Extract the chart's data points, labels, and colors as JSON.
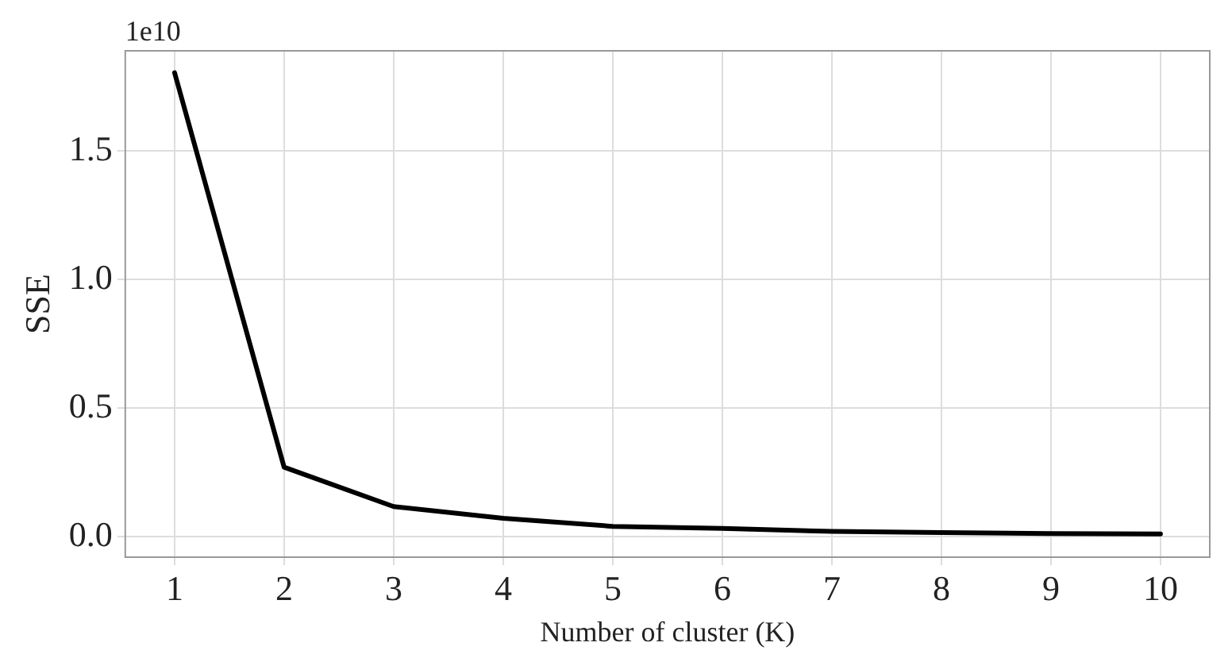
{
  "chart_data": {
    "type": "line",
    "xlabel": "Number of cluster (K)",
    "ylabel": "SSE",
    "annotations": [
      "1e10"
    ],
    "x": [
      1,
      2,
      3,
      4,
      5,
      6,
      7,
      8,
      9,
      10
    ],
    "series": [
      {
        "color": "#000000",
        "values": [
          1.805,
          0.27,
          0.117,
          0.071,
          0.04,
          0.032,
          0.02,
          0.016,
          0.012,
          0.01
        ]
      }
    ],
    "xlim": [
      0.55,
      10.45
    ],
    "xticks": [
      1,
      2,
      3,
      4,
      5,
      6,
      7,
      8,
      9,
      10
    ],
    "ylim": [
      -0.08,
      1.89
    ],
    "yticks": [
      {
        "value": 0,
        "label": "0.0"
      },
      0.5,
      {
        "value": 1,
        "label": "1.0"
      },
      1.5
    ],
    "grid": true,
    "legend": false,
    "marker": "none",
    "line_style": "solid"
  }
}
